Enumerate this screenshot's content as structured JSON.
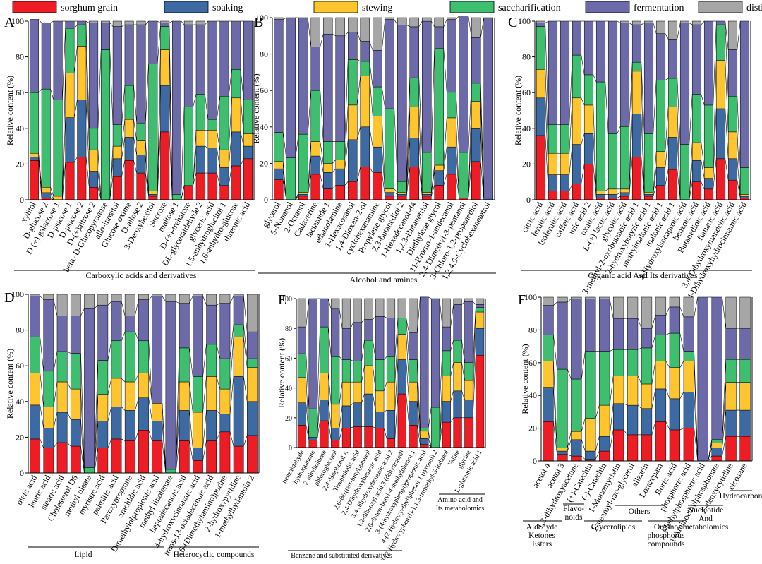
{
  "legend": {
    "series": [
      {
        "name": "sorghum grain",
        "color": "#ee1c24"
      },
      {
        "name": "soaking",
        "color": "#3d6aa3"
      },
      {
        "name": "stewing",
        "color": "#fec52e"
      },
      {
        "name": "saccharification",
        "color": "#3dbf6f"
      },
      {
        "name": "fermentation",
        "color": "#6c6aa8"
      },
      {
        "name": "distilling",
        "color": "#a6a6a6"
      }
    ]
  },
  "chart_data": [
    {
      "type": "bar",
      "stacked": true,
      "panel": "A",
      "ylabel": "Relative content (%)",
      "ylim": [
        0,
        100
      ],
      "yticks": [
        0,
        20,
        40,
        60,
        80,
        100
      ],
      "groups": [
        {
          "label": "Carboxylic acids and derivatives",
          "from": 0,
          "to": 20
        }
      ],
      "categories": [
        "xylitol",
        "D-glucose 2",
        "D (+) galactose 1",
        "D-psicose 1",
        "D-psicose 2",
        "D-(+)altrose 2",
        "beta.-D-Glucopyranose",
        "allo-inositol",
        "Glucose oxime",
        "D-allose 2",
        "3-Deoxyhexitol",
        "Sucrose",
        "maltose 1",
        "D-(+)-trehalose",
        "DL-glyceraldehyde 2",
        "glyceric acid",
        "1,5-anhydroglucitol 1",
        "1,6-anhydro-glucose",
        "threonic acid"
      ],
      "series": [
        {
          "name": "sorghum grain",
          "values": [
            22,
            1,
            0,
            21,
            24,
            7,
            0,
            13,
            22,
            15,
            2,
            38,
            0,
            8,
            15,
            15,
            8,
            19,
            23
          ]
        },
        {
          "name": "soaking",
          "values": [
            2,
            3,
            0,
            25,
            32,
            9,
            0,
            10,
            13,
            10,
            1,
            26,
            0,
            0,
            15,
            14,
            10,
            19,
            7
          ]
        },
        {
          "name": "stewing",
          "values": [
            2,
            3,
            2,
            25,
            30,
            12,
            0,
            7,
            10,
            8,
            2,
            20,
            0,
            0,
            9,
            10,
            10,
            19,
            7
          ]
        },
        {
          "name": "saccharification",
          "values": [
            34,
            55,
            54,
            25,
            12,
            12,
            84,
            12,
            19,
            10,
            71,
            13,
            3,
            44,
            20,
            6,
            30,
            16,
            19
          ]
        },
        {
          "name": "fermentation",
          "values": [
            41,
            37,
            44,
            4,
            2,
            59,
            15,
            55,
            34,
            55,
            24,
            2,
            97,
            46,
            39,
            55,
            42,
            27,
            44
          ]
        },
        {
          "name": "distilling",
          "values": [
            0,
            0,
            0,
            0,
            0,
            1,
            1,
            3,
            2,
            2,
            0,
            1,
            0,
            2,
            2,
            0,
            0,
            0,
            0
          ]
        }
      ]
    },
    {
      "type": "bar",
      "stacked": true,
      "panel": "B",
      "ylabel": "Relative content (%)",
      "ylim": [
        0,
        100
      ],
      "yticks": [
        0,
        20,
        40,
        60,
        80,
        100
      ],
      "groups": [
        {
          "label": "Alcohol and amines",
          "from": 0,
          "to": 19
        }
      ],
      "categories": [
        "glycerol",
        "5-Nonanol",
        "2-Octanol",
        "Cadaverine",
        "lactamide 1",
        "ethanolamine",
        "1-Hexacosanol",
        "1,4-Dioxan-2-ol",
        "cyclohexanamine",
        "Propylene glycol",
        "2,3-butanediol 2",
        "1-Hexadecanol-d4",
        "1,2,3-Butanetriol",
        "Diethylene glycol",
        "11-Bromo-1-undecanol",
        "2,4-Dimethyl-3-pentanol",
        "3-Chloro-1,2-propanediol",
        "1,2,4,5-Cyclohexanetetrol"
      ],
      "series": [
        {
          "name": "sorghum grain",
          "values": [
            11,
            0,
            2,
            14,
            6,
            8,
            10,
            18,
            15,
            2,
            2,
            18,
            2,
            8,
            14,
            1,
            21,
            0
          ]
        },
        {
          "name": "soaking",
          "values": [
            6,
            0,
            1,
            10,
            9,
            9,
            23,
            22,
            14,
            2,
            1,
            16,
            1,
            8,
            15,
            0,
            18,
            1
          ]
        },
        {
          "name": "stewing",
          "values": [
            4,
            0,
            1,
            8,
            5,
            5,
            19,
            28,
            17,
            2,
            1,
            17,
            1,
            3,
            16,
            0,
            15,
            0
          ]
        },
        {
          "name": "saccharification",
          "values": [
            16,
            23,
            32,
            28,
            12,
            10,
            25,
            8,
            16,
            44,
            6,
            16,
            22,
            64,
            14,
            25,
            10,
            0
          ]
        },
        {
          "name": "fermentation",
          "values": [
            62,
            77,
            64,
            24,
            59,
            58,
            15,
            11,
            20,
            49,
            86,
            28,
            72,
            12,
            40,
            75,
            25,
            99
          ]
        },
        {
          "name": "distilling",
          "values": [
            1,
            0,
            0,
            16,
            9,
            10,
            8,
            13,
            18,
            1,
            4,
            5,
            2,
            5,
            1,
            0,
            11,
            0
          ]
        }
      ]
    },
    {
      "type": "bar",
      "stacked": true,
      "panel": "C",
      "ylabel": "Relative content (%)",
      "ylim": [
        0,
        100
      ],
      "yticks": [
        0,
        20,
        40,
        60,
        80,
        100
      ],
      "groups": [
        {
          "label": "Organic acid And Its derivatives",
          "from": 0,
          "to": 20
        }
      ],
      "categories": [
        "citric acid",
        "ferulic acid",
        "Isoferulic acid",
        "caffeic acid",
        "uric acid 2",
        "oxalic acid",
        "L-(+) lactic acid",
        "glycolic acid",
        "3-methyl-2-oxobutanoic acid 1",
        "2-hydroxybutyric acid 1",
        "methylmalonic acid 1",
        "malonic acid 1",
        "2-Hydroxyisocaproic acid",
        "benzoic acid",
        "Butanedioic acid",
        "fumaric acid",
        "3,4-Dihydroxymandelic acid",
        "3,4-Dihydroxyhydrocinnamic acid"
      ],
      "series": [
        {
          "name": "sorghum grain",
          "values": [
            36,
            5,
            5,
            9,
            20,
            1,
            1,
            2,
            24,
            2,
            8,
            17,
            0,
            10,
            6,
            23,
            11,
            1
          ]
        },
        {
          "name": "soaking",
          "values": [
            21,
            9,
            9,
            22,
            17,
            2,
            2,
            2,
            24,
            1,
            10,
            18,
            0,
            12,
            6,
            28,
            12,
            1
          ]
        },
        {
          "name": "stewing",
          "values": [
            16,
            12,
            12,
            26,
            16,
            2,
            3,
            2,
            24,
            1,
            9,
            17,
            0,
            10,
            6,
            27,
            15,
            1
          ]
        },
        {
          "name": "saccharification",
          "values": [
            24,
            16,
            16,
            24,
            17,
            61,
            31,
            35,
            5,
            33,
            40,
            16,
            31,
            27,
            35,
            20,
            20,
            15
          ]
        },
        {
          "name": "fermentation",
          "values": [
            2,
            58,
            58,
            19,
            30,
            34,
            63,
            58,
            21,
            62,
            26,
            22,
            68,
            39,
            47,
            2,
            26,
            82
          ]
        },
        {
          "name": "distilling",
          "values": [
            1,
            0,
            0,
            0,
            0,
            0,
            0,
            1,
            2,
            1,
            7,
            10,
            1,
            2,
            0,
            0,
            16,
            0
          ]
        }
      ]
    },
    {
      "type": "bar",
      "stacked": true,
      "panel": "D",
      "ylabel": "Relative content (%)",
      "ylim": [
        0,
        100
      ],
      "yticks": [
        0,
        20,
        40,
        60,
        80,
        100
      ],
      "groups": [
        {
          "label": "Lipid",
          "from": 0,
          "to": 10
        },
        {
          "label": "Heterocyclic compounds",
          "from": 10,
          "to": 17
        }
      ],
      "categories": [
        "oleic acid",
        "lauric acid",
        "stearic acid",
        "Cholesterol D6",
        "methyl oleate",
        "myristic acid",
        "palmitic acid",
        "Paroxypropione",
        "arachidic acid",
        "Dimethylolpropionic acid",
        "methyl linolenate",
        "heptadecanoic acid",
        "4-hydroxycinnamic acid",
        "trans-13-octadecenoic acid",
        "6-(Dimethylamino)purine",
        "2-hydroxypyridine",
        "1-methylhydantoin 2"
      ],
      "series": [
        {
          "name": "sorghum grain",
          "values": [
            19,
            14,
            17,
            15,
            0,
            14,
            19,
            18,
            24,
            18,
            0,
            18,
            7,
            18,
            23,
            15,
            21
          ]
        },
        {
          "name": "soaking",
          "values": [
            19,
            11,
            17,
            15,
            0,
            15,
            18,
            17,
            18,
            11,
            0,
            17,
            7,
            17,
            10,
            39,
            19
          ]
        },
        {
          "name": "stewing",
          "values": [
            18,
            12,
            17,
            17,
            0,
            15,
            16,
            16,
            14,
            10,
            0,
            16,
            20,
            19,
            14,
            22,
            19
          ]
        },
        {
          "name": "saccharification",
          "values": [
            20,
            20,
            17,
            20,
            3,
            19,
            21,
            28,
            18,
            0,
            2,
            19,
            20,
            18,
            17,
            7,
            5
          ]
        },
        {
          "name": "fermentation",
          "values": [
            23,
            40,
            20,
            21,
            89,
            31,
            22,
            9,
            23,
            60,
            94,
            25,
            45,
            22,
            31,
            16,
            15
          ]
        },
        {
          "name": "distilling",
          "values": [
            1,
            3,
            12,
            12,
            8,
            6,
            4,
            12,
            3,
            1,
            4,
            5,
            1,
            6,
            5,
            1,
            21
          ]
        }
      ]
    },
    {
      "type": "bar",
      "stacked": true,
      "panel": "E",
      "ylabel": "Relative content (%)",
      "ylim": [
        0,
        100
      ],
      "yticks": [
        0,
        20,
        40,
        60,
        80,
        100
      ],
      "groups": [
        {
          "label": "Benzene and substituted derivatives",
          "from": 0,
          "to": 17
        },
        {
          "label": "Amino acid and Its metabolomics",
          "from": 17,
          "to": 20
        }
      ],
      "categories": [
        "benzaldehyde",
        "hydroquinone",
        "2-ethyltoluene",
        "phloroglucinol",
        "2,4'-Bisphenol A",
        "Terephthalic acid",
        "2,6-Bis(tert-butyl)phenol",
        "2,4-Dihydroxybenzoic acid",
        "3,4-dihydroxybenzoic acid 2",
        "1,2-dibenzyl acid 3 (dehydrated)",
        "2,6-di-tert-butyl-4-methylphenol 1",
        "3-(4-hydroxyphenyl)propionic acid",
        "4-(2-Hydroxyethyl)phenol 1 (tyrosol) 2",
        "3-(2-Hydroxyphenyl)-1,1,3-trimethyl-5-indanol",
        "Valine",
        "glycine",
        "L-glutamic acid 1"
      ],
      "series": [
        {
          "name": "sorghum grain",
          "values": [
            15,
            5,
            18,
            5,
            13,
            14,
            14,
            13,
            6,
            36,
            15,
            2,
            0,
            17,
            20,
            20,
            62
          ]
        },
        {
          "name": "soaking",
          "values": [
            15,
            2,
            14,
            8,
            15,
            16,
            22,
            11,
            19,
            23,
            16,
            4,
            0,
            14,
            18,
            12,
            18
          ]
        },
        {
          "name": "stewing",
          "values": [
            17,
            0,
            18,
            16,
            16,
            14,
            19,
            14,
            19,
            17,
            13,
            5,
            0,
            17,
            19,
            13,
            11
          ]
        },
        {
          "name": "saccharification",
          "values": [
            16,
            19,
            31,
            32,
            15,
            14,
            17,
            21,
            17,
            11,
            15,
            2,
            27,
            17,
            15,
            12,
            3
          ]
        },
        {
          "name": "fermentation",
          "values": [
            18,
            74,
            19,
            32,
            21,
            26,
            14,
            29,
            26,
            0,
            18,
            88,
            73,
            16,
            24,
            41,
            2
          ]
        },
        {
          "name": "distilling",
          "values": [
            19,
            0,
            0,
            7,
            20,
            16,
            14,
            12,
            13,
            13,
            23,
            0,
            0,
            19,
            4,
            2,
            4
          ]
        }
      ]
    },
    {
      "type": "bar",
      "stacked": true,
      "panel": "F",
      "ylabel": "Relative content (%)",
      "ylim": [
        0,
        100
      ],
      "yticks": [
        0,
        20,
        40,
        60,
        80,
        100
      ],
      "groups": [
        {
          "label": "Aldehyde Ketones Esters",
          "from": 0,
          "to": 3
        },
        {
          "label": "Flavo- noids",
          "from": 3,
          "to": 5
        },
        {
          "label": "Glycerolipids",
          "from": 5,
          "to": 7
        },
        {
          "label": "Others",
          "from": 7,
          "to": 9
        },
        {
          "label": "Organo phosphorus compounds",
          "from": 9,
          "to": 11
        },
        {
          "label": "Nucleotide And metabolomics",
          "from": 11,
          "to": 13
        },
        {
          "label": "Hydrocarbon",
          "from": 13,
          "to": 14
        }
      ],
      "categories": [
        "acetol 4",
        "acetol 3",
        "1,3-dihydroxyacetone",
        "(+)-Catechin",
        "(-)-Catechin",
        "1-Monomyristin",
        "1-stearoyl-rac-glycerol",
        "alizarin",
        "Lorazepam",
        "Boric acid",
        "phosphoric acid",
        "Methylphosphoric acid",
        "1-Aminoethylphosphonate",
        "2'-deoxycytidine",
        "eicosane"
      ],
      "series": [
        {
          "name": "sorghum grain",
          "values": [
            24,
            4,
            3,
            1,
            6,
            19,
            16,
            16,
            24,
            19,
            20,
            0,
            3,
            15,
            15
          ]
        },
        {
          "name": "soaking",
          "values": [
            21,
            2,
            10,
            5,
            9,
            16,
            18,
            16,
            20,
            19,
            22,
            0,
            5,
            16,
            16
          ]
        },
        {
          "name": "stewing",
          "values": [
            16,
            2,
            5,
            20,
            19,
            17,
            18,
            15,
            17,
            19,
            19,
            0,
            3,
            17,
            17
          ]
        },
        {
          "name": "saccharification",
          "values": [
            16,
            48,
            32,
            41,
            33,
            16,
            16,
            22,
            16,
            21,
            6,
            0,
            2,
            14,
            14
          ]
        },
        {
          "name": "fermentation",
          "values": [
            18,
            41,
            49,
            32,
            32,
            19,
            19,
            12,
            12,
            16,
            21,
            100,
            87,
            19,
            19
          ]
        },
        {
          "name": "distilling",
          "values": [
            5,
            3,
            1,
            1,
            1,
            13,
            13,
            19,
            11,
            6,
            12,
            0,
            0,
            19,
            19
          ]
        }
      ]
    }
  ]
}
